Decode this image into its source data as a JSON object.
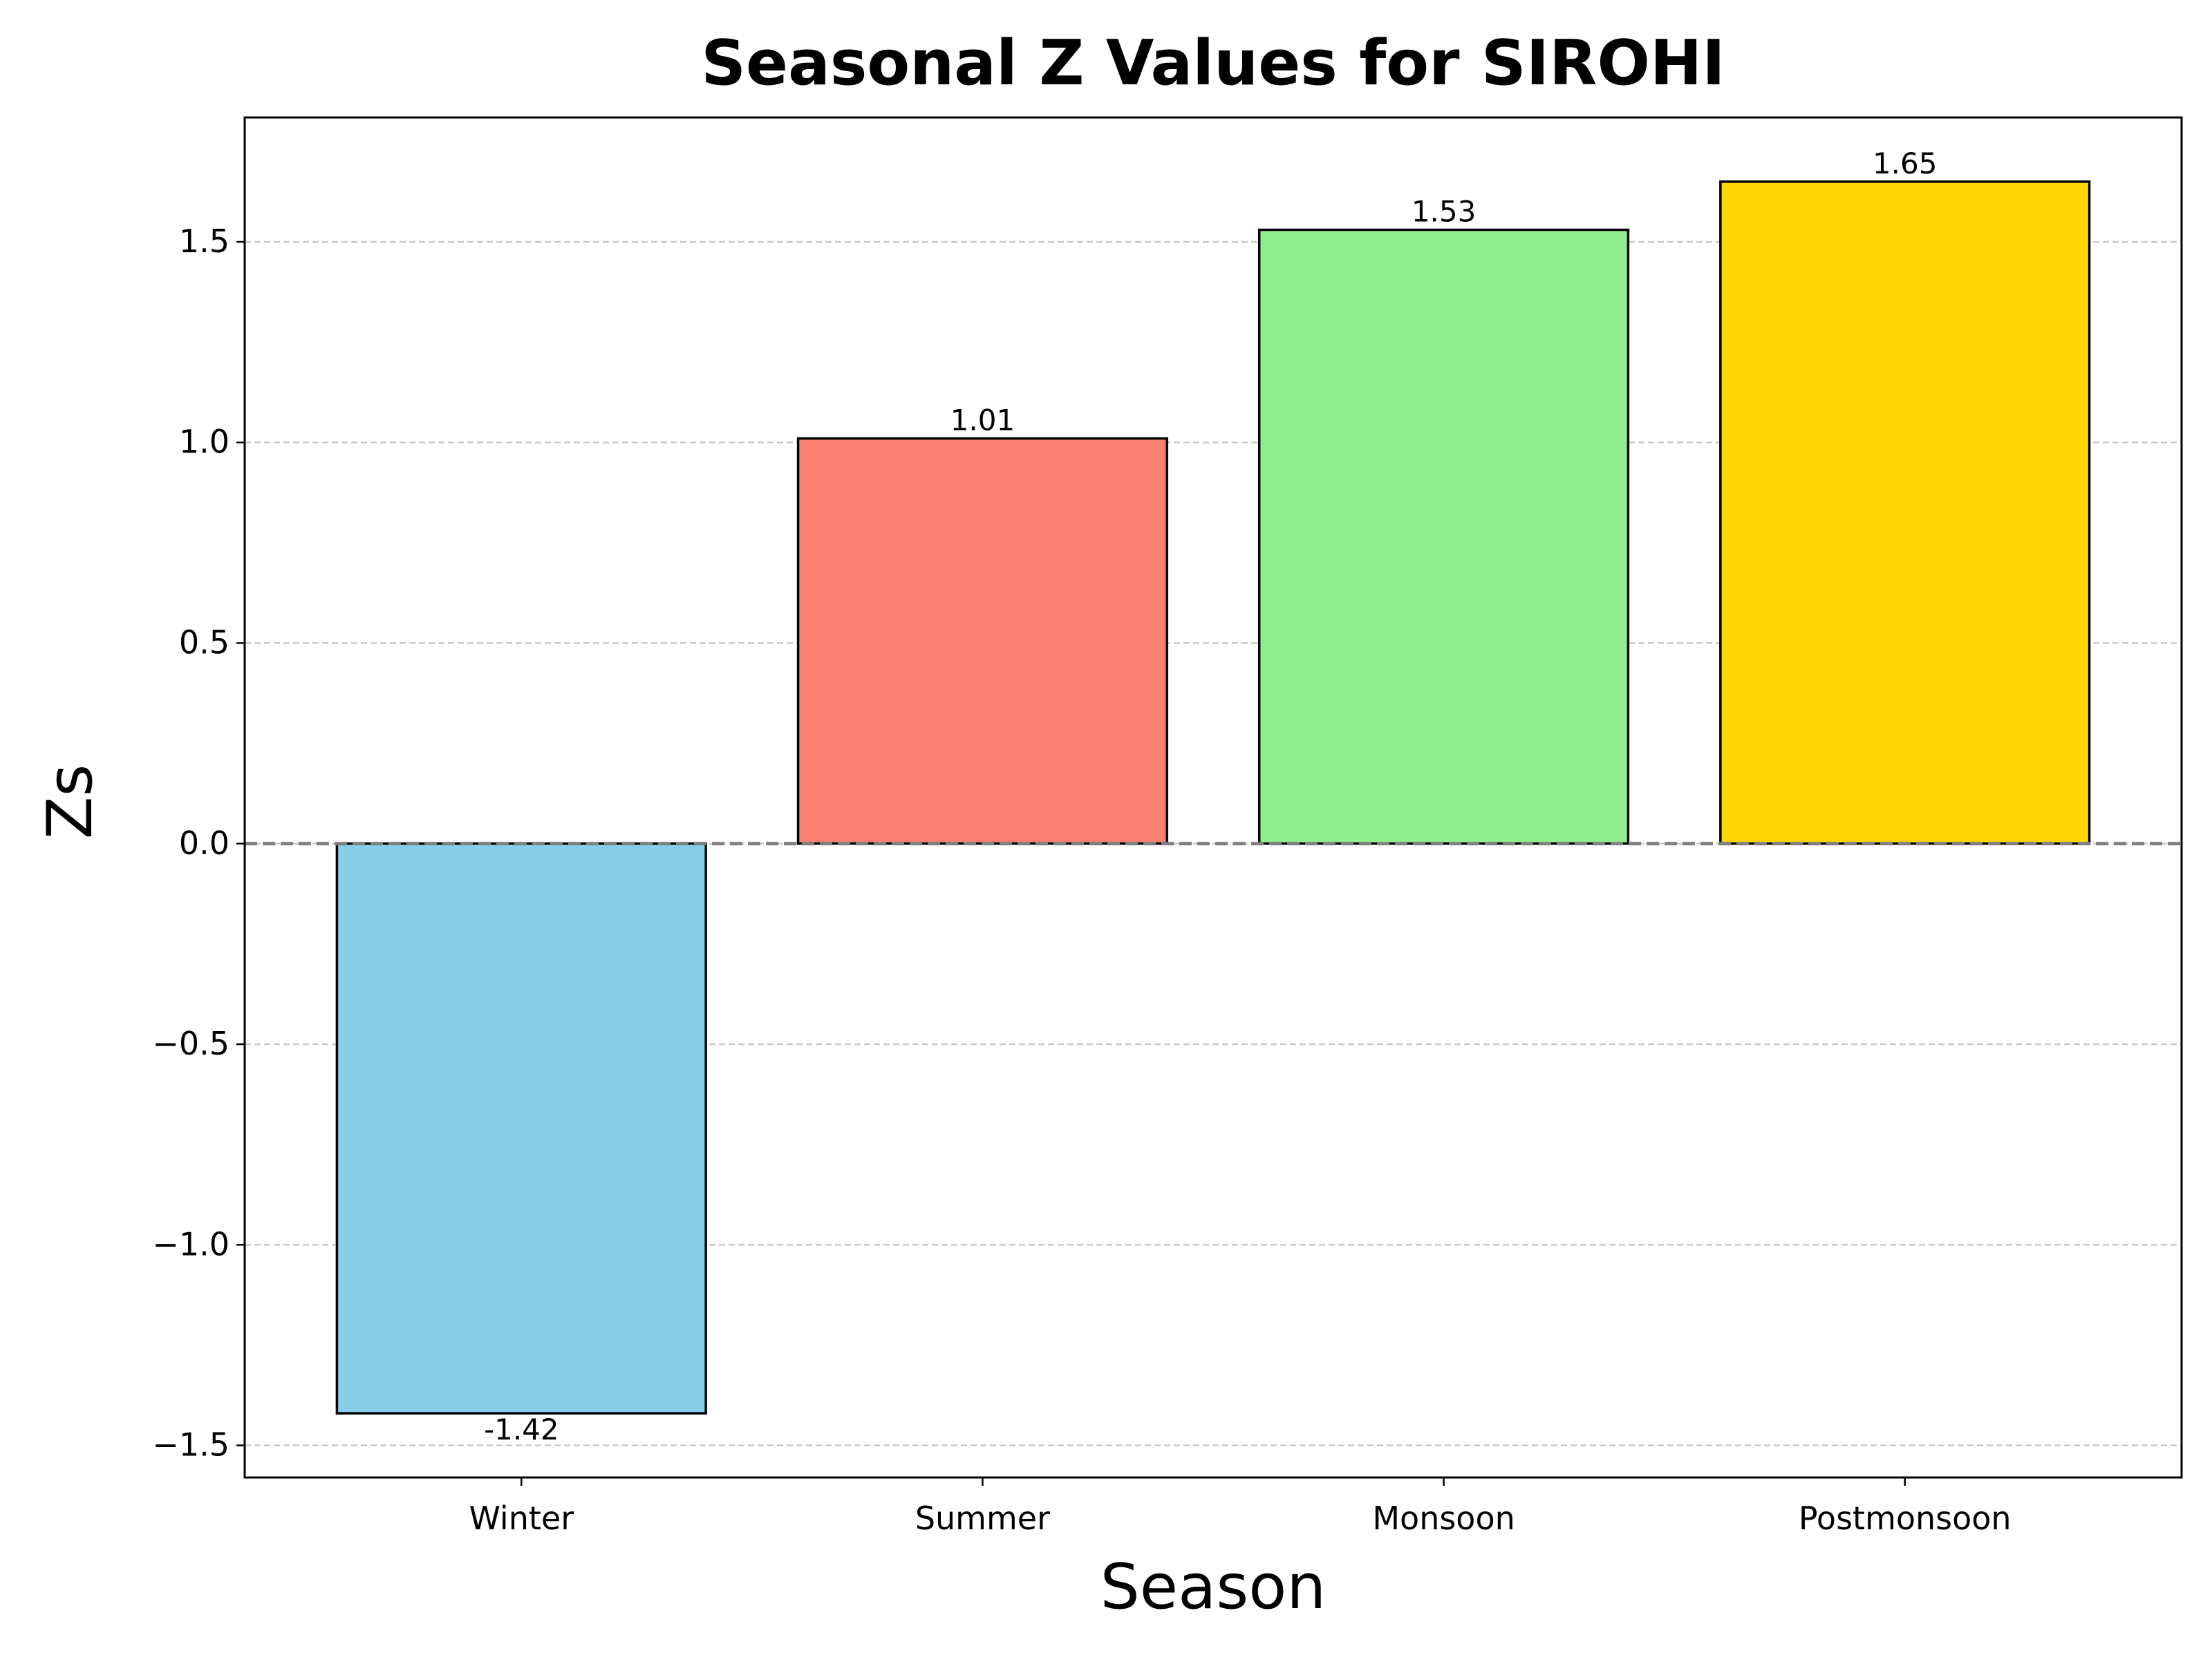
{
  "chart_data": {
    "type": "bar",
    "title": "Seasonal Z Values for SIROHI",
    "xlabel": "Season",
    "ylabel": "Zs",
    "categories": [
      "Winter",
      "Summer",
      "Monsoon",
      "Postmonsoon"
    ],
    "values": [
      -1.42,
      1.01,
      1.53,
      1.65
    ],
    "value_labels": [
      "-1.42",
      "1.01",
      "1.53",
      "1.65"
    ],
    "bar_colors": [
      "#87CEEB",
      "#FA8072",
      "#90EE90",
      "#FFD700"
    ],
    "edge_color": "#000000",
    "ylim": [
      -1.58,
      1.81
    ],
    "yticks": [
      -1.5,
      -1.0,
      -0.5,
      0.0,
      0.5,
      1.0,
      1.5
    ],
    "ytick_labels": [
      "−1.5",
      "−1.0",
      "−0.5",
      "0.0",
      "0.5",
      "1.0",
      "1.5"
    ],
    "grid": {
      "axis": "y",
      "style": "dashed",
      "color": "#c8c8c8"
    },
    "reference_line": {
      "y": 0.0,
      "style": "dashed",
      "color": "#808080"
    }
  }
}
